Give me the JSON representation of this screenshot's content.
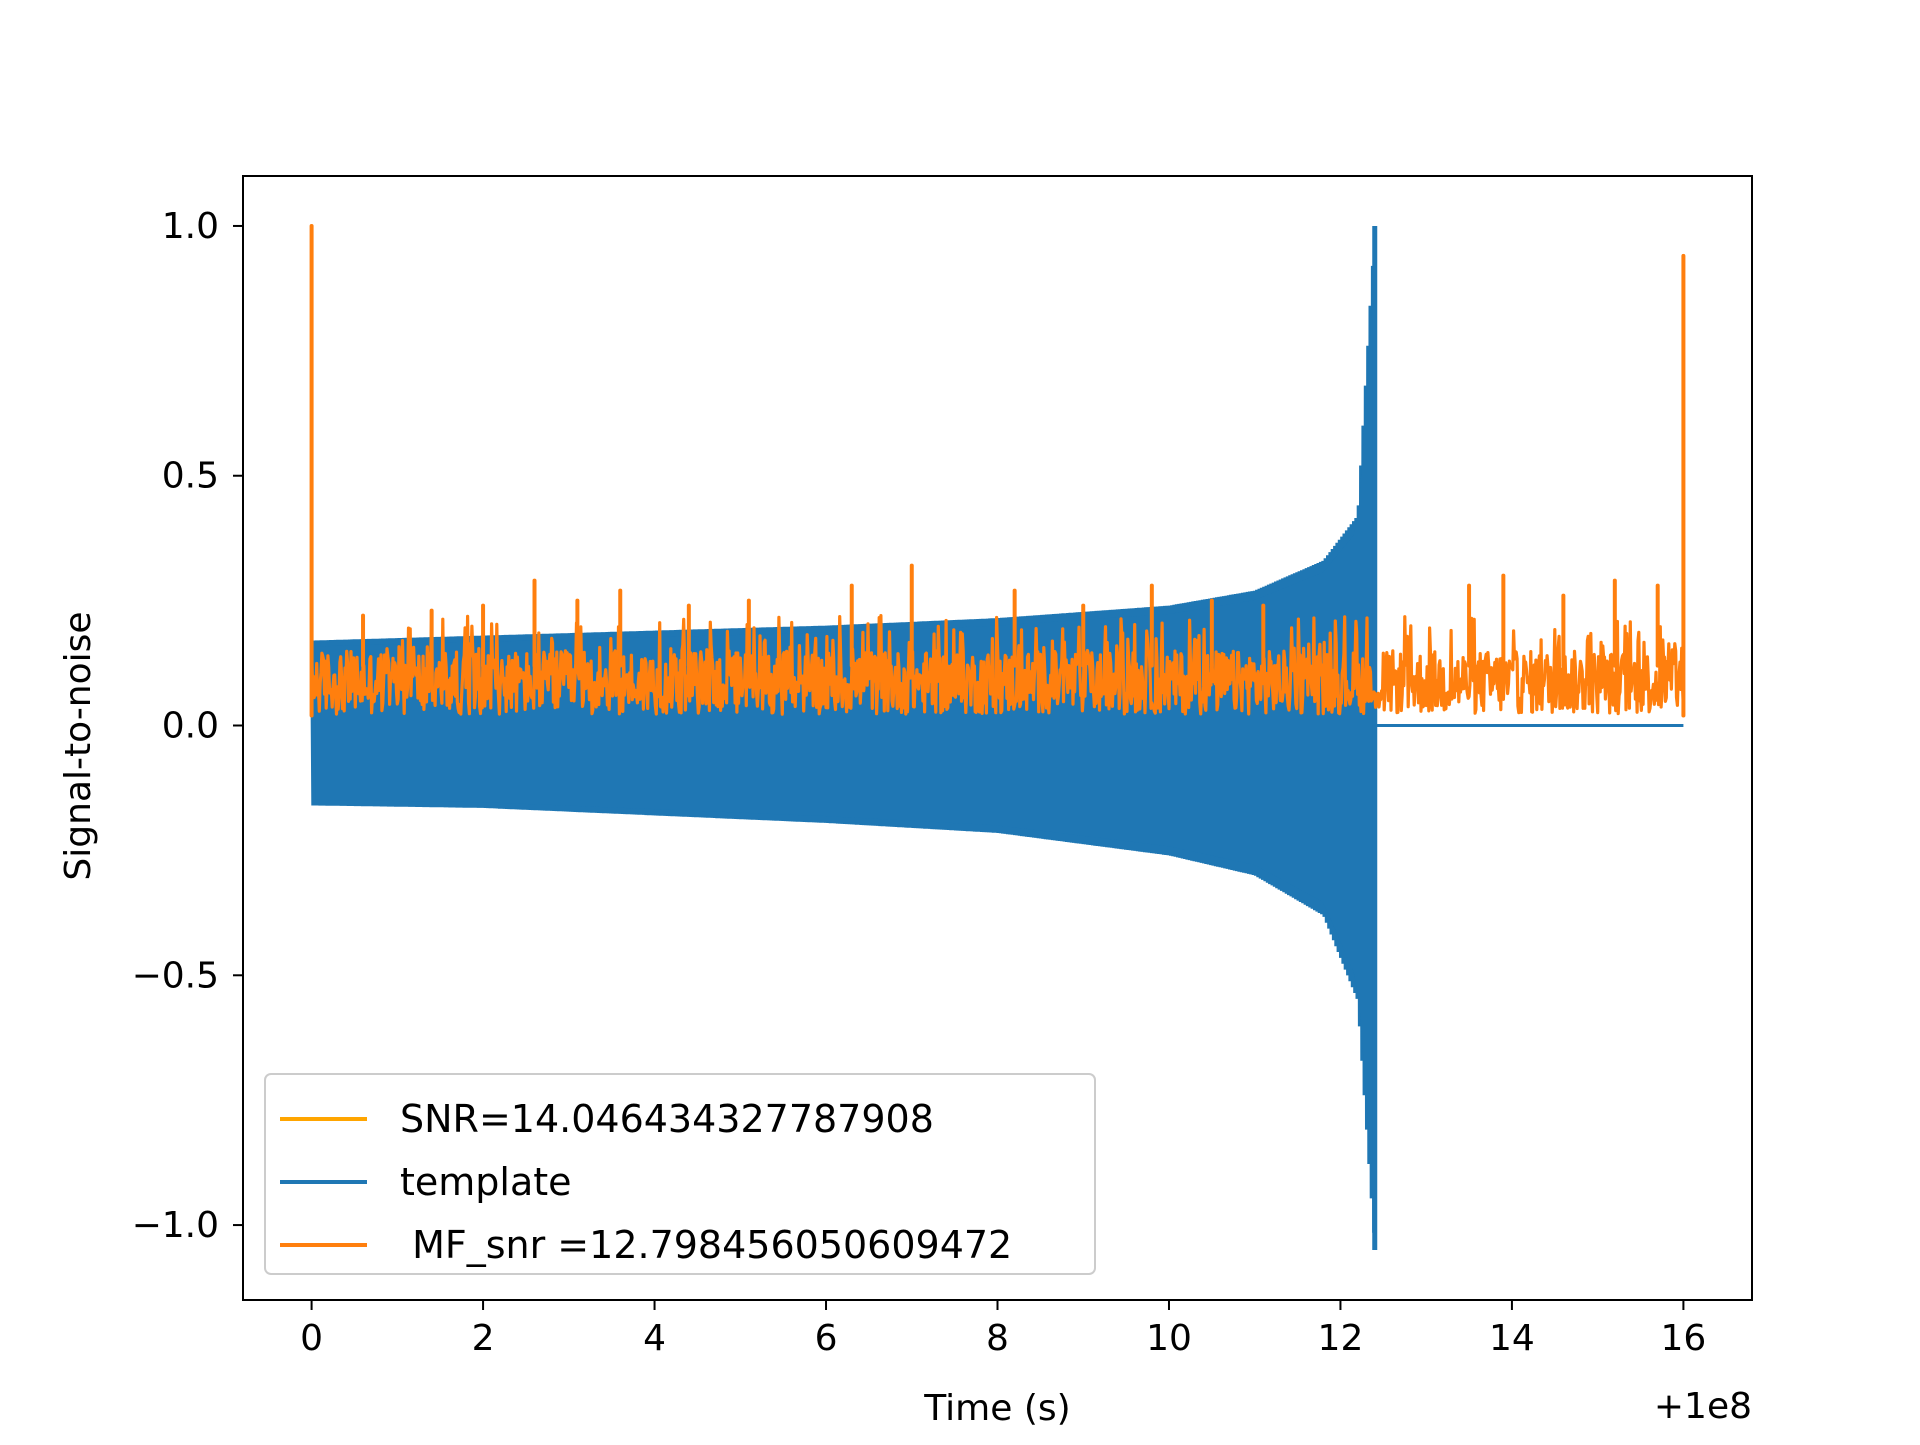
{
  "chart_data": {
    "type": "line",
    "title": "",
    "xlabel": "Time (s)",
    "ylabel": "Signal-to-noise",
    "x_offset_label": "+1e8",
    "xlim": [
      -0.8,
      16.8
    ],
    "ylim": [
      -1.15,
      1.1
    ],
    "x_ticks": [
      0,
      2,
      4,
      6,
      8,
      10,
      12,
      14,
      16
    ],
    "x_tick_labels": [
      "0",
      "2",
      "4",
      "6",
      "8",
      "10",
      "12",
      "14",
      "16"
    ],
    "y_ticks": [
      1.0,
      0.5,
      0.0,
      -0.5,
      -1.0
    ],
    "y_tick_labels": [
      "1.0",
      "0.5",
      "0.0",
      "−0.5",
      "−1.0"
    ],
    "grid": false,
    "legend_position": "lower-left",
    "series": [
      {
        "name": "SNR=14.046434327787908",
        "color": "#ffa500",
        "kind": "vertical-line",
        "x": 0.0,
        "y_range": [
          0.05,
          1.0
        ]
      },
      {
        "name": "template",
        "color": "#1f77b4",
        "kind": "chirp",
        "x_start": 0.0,
        "x_merger": 12.4,
        "x_end": 16.0,
        "envelope": {
          "x": [
            0,
            2,
            4,
            6,
            8,
            10,
            11,
            11.8,
            12.2,
            12.4
          ],
          "upper": [
            0.17,
            0.18,
            0.19,
            0.2,
            0.215,
            0.24,
            0.27,
            0.33,
            0.42,
            1.0
          ],
          "lower": [
            -0.16,
            -0.165,
            -0.18,
            -0.195,
            -0.215,
            -0.26,
            -0.3,
            -0.38,
            -0.55,
            -1.05
          ]
        },
        "post_merger_value": 0.0
      },
      {
        "name": " MF_snr =12.798456050609472",
        "color": "#ff7f0e",
        "kind": "noise",
        "x_start": 0.0,
        "x_end": 16.0,
        "baseline": [
          0.0,
          0.15
        ],
        "peaks": [
          {
            "x": 0.0,
            "y": 1.0
          },
          {
            "x": 0.6,
            "y": 0.22
          },
          {
            "x": 1.4,
            "y": 0.23
          },
          {
            "x": 2.0,
            "y": 0.24
          },
          {
            "x": 2.6,
            "y": 0.29
          },
          {
            "x": 3.1,
            "y": 0.25
          },
          {
            "x": 3.6,
            "y": 0.27
          },
          {
            "x": 4.4,
            "y": 0.24
          },
          {
            "x": 5.1,
            "y": 0.25
          },
          {
            "x": 6.3,
            "y": 0.28
          },
          {
            "x": 7.0,
            "y": 0.32
          },
          {
            "x": 8.2,
            "y": 0.27
          },
          {
            "x": 9.0,
            "y": 0.24
          },
          {
            "x": 9.8,
            "y": 0.28
          },
          {
            "x": 10.5,
            "y": 0.25
          },
          {
            "x": 11.1,
            "y": 0.24
          },
          {
            "x": 13.5,
            "y": 0.28
          },
          {
            "x": 13.9,
            "y": 0.3
          },
          {
            "x": 14.6,
            "y": 0.26
          },
          {
            "x": 15.2,
            "y": 0.29
          },
          {
            "x": 15.7,
            "y": 0.28
          },
          {
            "x": 16.0,
            "y": 0.94
          }
        ]
      }
    ]
  }
}
